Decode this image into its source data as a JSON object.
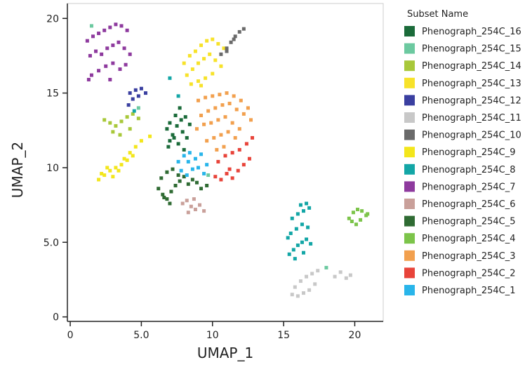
{
  "chart_data": {
    "type": "scatter",
    "x_label": "UMAP_1",
    "y_label": "UMAP_2",
    "legend_title": "Subset Name",
    "xlim": [
      -0.2,
      22
    ],
    "ylim": [
      -0.3,
      21
    ],
    "xticks": [
      0,
      {
        "value": 5,
        "label": "5.0"
      },
      10,
      15,
      20
    ],
    "yticks": [
      0,
      {
        "value": 5,
        "label": "5.0"
      },
      10,
      15,
      20
    ],
    "legend_position": "right",
    "series": [
      {
        "name": "Phenograph_254C_16",
        "color": "#1b6b3a",
        "x": [
          6.8,
          7.0,
          7.2,
          7.5,
          7.8,
          8.1,
          8.4,
          7.0,
          7.3,
          7.6,
          7.9,
          8.2,
          6.9,
          7.4,
          8.0,
          7.7
        ],
        "values": [
          12.6,
          13.0,
          12.2,
          12.8,
          13.2,
          13.4,
          12.9,
          11.8,
          12.0,
          11.6,
          12.4,
          12.0,
          11.4,
          13.5,
          11.2,
          14.0
        ]
      },
      {
        "name": "Phenograph_254C_15",
        "color": "#6cc9a0",
        "x": [
          1.5,
          4.8,
          9.7,
          18.0
        ],
        "values": [
          19.5,
          14.0,
          9.5,
          3.3
        ]
      },
      {
        "name": "Phenograph_254C_14",
        "color": "#a8c83a",
        "x": [
          2.4,
          2.8,
          3.2,
          3.6,
          4.0,
          4.4,
          4.8,
          3.0,
          3.5,
          4.2
        ],
        "values": [
          13.2,
          13.0,
          12.8,
          13.1,
          13.4,
          13.6,
          13.3,
          12.4,
          12.2,
          12.6
        ]
      },
      {
        "name": "Phenograph_254C_13",
        "color": "#f7e22a",
        "x": [
          8.0,
          8.4,
          8.8,
          9.2,
          9.6,
          10.0,
          10.4,
          10.8,
          8.2,
          8.6,
          9.0,
          9.4,
          9.8,
          10.2,
          10.6,
          8.5,
          9.0,
          9.5,
          10.0,
          9.2
        ],
        "values": [
          17.0,
          17.5,
          17.8,
          18.2,
          18.5,
          18.6,
          18.3,
          18.0,
          16.2,
          16.6,
          17.0,
          17.3,
          17.6,
          17.2,
          16.8,
          15.6,
          15.8,
          16.0,
          16.3,
          15.5
        ]
      },
      {
        "name": "Phenograph_254C_12",
        "color": "#3a3fa0",
        "x": [
          4.2,
          4.6,
          5.0,
          5.3,
          4.4,
          4.8,
          4.1
        ],
        "values": [
          15.0,
          15.2,
          15.3,
          15.0,
          14.6,
          14.8,
          14.2
        ]
      },
      {
        "name": "Phenograph_254C_11",
        "color": "#c8c8c8",
        "x": [
          15.6,
          16.0,
          16.4,
          16.8,
          17.2,
          15.8,
          16.2,
          16.6,
          17.0,
          17.4,
          18.6,
          19.0,
          19.4,
          19.7
        ],
        "values": [
          1.5,
          1.4,
          1.6,
          1.8,
          2.2,
          2.0,
          2.4,
          2.7,
          2.9,
          3.1,
          2.7,
          3.0,
          2.6,
          2.8
        ]
      },
      {
        "name": "Phenograph_254C_10",
        "color": "#6a6a6a",
        "x": [
          10.6,
          11.0,
          11.3,
          11.6,
          11.9,
          12.2,
          11.0,
          11.5
        ],
        "values": [
          17.6,
          18.0,
          18.4,
          18.8,
          19.1,
          19.3,
          17.8,
          18.6
        ]
      },
      {
        "name": "Phenograph_254C_9",
        "color": "#f3e61c",
        "x": [
          2.0,
          2.4,
          2.8,
          3.2,
          3.6,
          4.0,
          4.4,
          2.2,
          2.6,
          3.0,
          3.4,
          3.8,
          4.2,
          4.6,
          5.0,
          5.6
        ],
        "values": [
          9.2,
          9.5,
          9.8,
          10.0,
          10.2,
          10.5,
          10.8,
          9.6,
          10.0,
          9.4,
          9.8,
          10.6,
          11.0,
          11.4,
          11.8,
          12.1
        ]
      },
      {
        "name": "Phenograph_254C_8",
        "color": "#13a6a6",
        "x": [
          15.4,
          15.7,
          16.0,
          16.3,
          16.6,
          16.9,
          15.5,
          15.9,
          16.3,
          16.7,
          15.6,
          16.0,
          16.4,
          16.8,
          16.2,
          16.6,
          16.4,
          15.8,
          15.3,
          7.0,
          7.6,
          4.5
        ],
        "values": [
          4.2,
          4.5,
          4.8,
          5.0,
          5.2,
          4.9,
          5.6,
          5.9,
          6.2,
          6.0,
          6.6,
          6.9,
          7.1,
          7.3,
          7.5,
          7.6,
          4.3,
          3.9,
          5.3,
          16.0,
          14.8,
          13.8
        ]
      },
      {
        "name": "Phenograph_254C_7",
        "color": "#8e3a9e",
        "x": [
          1.2,
          1.6,
          2.0,
          2.4,
          2.8,
          3.2,
          3.6,
          4.0,
          1.4,
          1.8,
          2.2,
          2.6,
          3.0,
          3.4,
          3.8,
          4.2,
          1.5,
          2.0,
          2.5,
          3.0,
          3.5,
          1.3,
          2.8,
          3.9
        ],
        "values": [
          18.5,
          18.8,
          19.0,
          19.2,
          19.4,
          19.6,
          19.5,
          19.2,
          17.5,
          17.8,
          17.6,
          18.0,
          18.2,
          18.4,
          18.0,
          17.6,
          16.2,
          16.5,
          16.8,
          17.0,
          16.6,
          15.9,
          15.9,
          16.9
        ]
      },
      {
        "name": "Phenograph_254C_6",
        "color": "#c9a09a",
        "x": [
          7.9,
          8.2,
          8.5,
          8.8,
          9.1,
          8.3,
          8.7,
          9.4
        ],
        "values": [
          7.6,
          7.8,
          7.4,
          7.2,
          7.5,
          7.0,
          7.9,
          7.1
        ]
      },
      {
        "name": "Phenograph_254C_5",
        "color": "#2f6b33",
        "x": [
          6.2,
          6.5,
          6.8,
          7.1,
          7.4,
          7.7,
          8.0,
          8.3,
          8.6,
          8.9,
          9.2,
          9.6,
          6.4,
          6.8,
          7.2,
          7.6,
          7.0,
          6.6
        ],
        "values": [
          8.6,
          8.2,
          7.9,
          8.4,
          8.8,
          9.1,
          9.4,
          8.9,
          9.2,
          9.0,
          8.6,
          8.8,
          9.3,
          9.7,
          9.9,
          9.5,
          7.6,
          8.0
        ]
      },
      {
        "name": "Phenograph_254C_4",
        "color": "#7cc44a",
        "x": [
          19.6,
          19.9,
          20.2,
          20.5,
          20.8,
          19.8,
          20.4,
          20.9,
          20.1
        ],
        "values": [
          6.6,
          7.0,
          7.2,
          7.1,
          6.8,
          6.4,
          6.5,
          6.9,
          6.2
        ]
      },
      {
        "name": "Phenograph_254C_3",
        "color": "#f2a04e",
        "x": [
          9.0,
          9.5,
          10.0,
          10.5,
          11.0,
          11.5,
          12.0,
          12.5,
          9.2,
          9.7,
          10.2,
          10.7,
          11.2,
          11.7,
          12.2,
          12.7,
          8.9,
          9.4,
          9.9,
          10.4,
          10.9,
          11.4,
          11.9,
          9.6,
          10.1,
          10.6,
          11.1,
          11.6,
          10.3,
          10.8
        ],
        "values": [
          14.5,
          14.7,
          14.8,
          14.9,
          15.0,
          14.8,
          14.5,
          14.0,
          13.5,
          13.8,
          14.0,
          14.2,
          14.3,
          13.9,
          13.6,
          13.2,
          12.6,
          12.9,
          13.0,
          13.2,
          13.4,
          13.0,
          12.6,
          11.8,
          12.0,
          12.2,
          12.4,
          12.0,
          11.2,
          11.4
        ]
      },
      {
        "name": "Phenograph_254C_2",
        "color": "#e8443a",
        "x": [
          10.2,
          10.6,
          11.0,
          11.4,
          11.8,
          12.2,
          12.6,
          10.4,
          10.9,
          11.4,
          11.9,
          12.4,
          12.8,
          11.2
        ],
        "values": [
          9.4,
          9.2,
          9.6,
          9.3,
          9.8,
          10.2,
          10.6,
          10.4,
          10.8,
          11.0,
          11.2,
          11.6,
          12.0,
          9.9
        ]
      },
      {
        "name": "Phenograph_254C_1",
        "color": "#29b5ea",
        "x": [
          7.6,
          8.0,
          8.4,
          8.8,
          9.2,
          9.6,
          7.8,
          8.2,
          8.6,
          9.0,
          9.4,
          8.3
        ],
        "values": [
          10.4,
          10.8,
          11.0,
          10.6,
          10.9,
          10.2,
          9.8,
          9.5,
          9.9,
          10.0,
          9.6,
          10.4
        ]
      }
    ]
  }
}
